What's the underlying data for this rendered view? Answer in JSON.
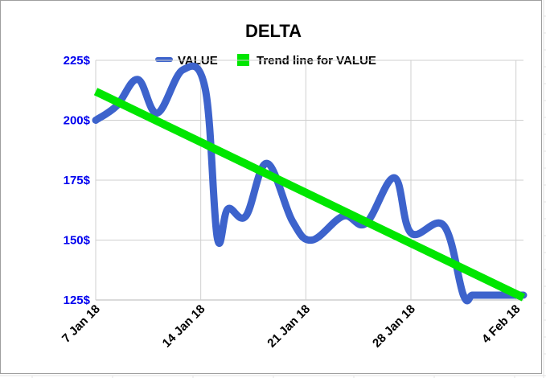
{
  "chart_data": {
    "type": "line",
    "title": "DELTA",
    "xlabel": "",
    "ylabel": "",
    "ylim": [
      125,
      225
    ],
    "y_ticks": [
      125,
      150,
      175,
      200,
      225
    ],
    "y_tick_labels": [
      "125$",
      "150$",
      "175$",
      "200$",
      "225$"
    ],
    "x_range_days": [
      0,
      28.5
    ],
    "x_ticks": [
      0,
      7,
      14,
      21,
      28
    ],
    "x_tick_labels": [
      "7 Jan 18",
      "14 Jan 18",
      "21 Jan 18",
      "28 Jan 18",
      "4 Feb 18"
    ],
    "legend_position": "top",
    "series": [
      {
        "name": "VALUE",
        "color": "#3d63cc",
        "x": [
          0,
          1.4,
          2.8,
          4.1,
          5.8,
          7.3,
          8.1,
          8.8,
          10,
          11.4,
          13.1,
          14.4,
          16.5,
          18,
          19.9,
          21,
          23.2,
          24.5,
          25.1,
          25.9,
          26.6,
          28.5
        ],
        "values": [
          200,
          206,
          217,
          203,
          221,
          213,
          151,
          163,
          160,
          182,
          158,
          150,
          160,
          157,
          176,
          153,
          156,
          127,
          127,
          127,
          127,
          127
        ]
      },
      {
        "name": "Trend line for VALUE",
        "color": "#00e600",
        "x": [
          0,
          28.5
        ],
        "values": [
          212,
          126
        ]
      }
    ]
  },
  "colors": {
    "axis_tick_color": "#0000ee",
    "grid_color": "#cfcfcf",
    "sheet_grid_color": "#e3e3e3"
  }
}
